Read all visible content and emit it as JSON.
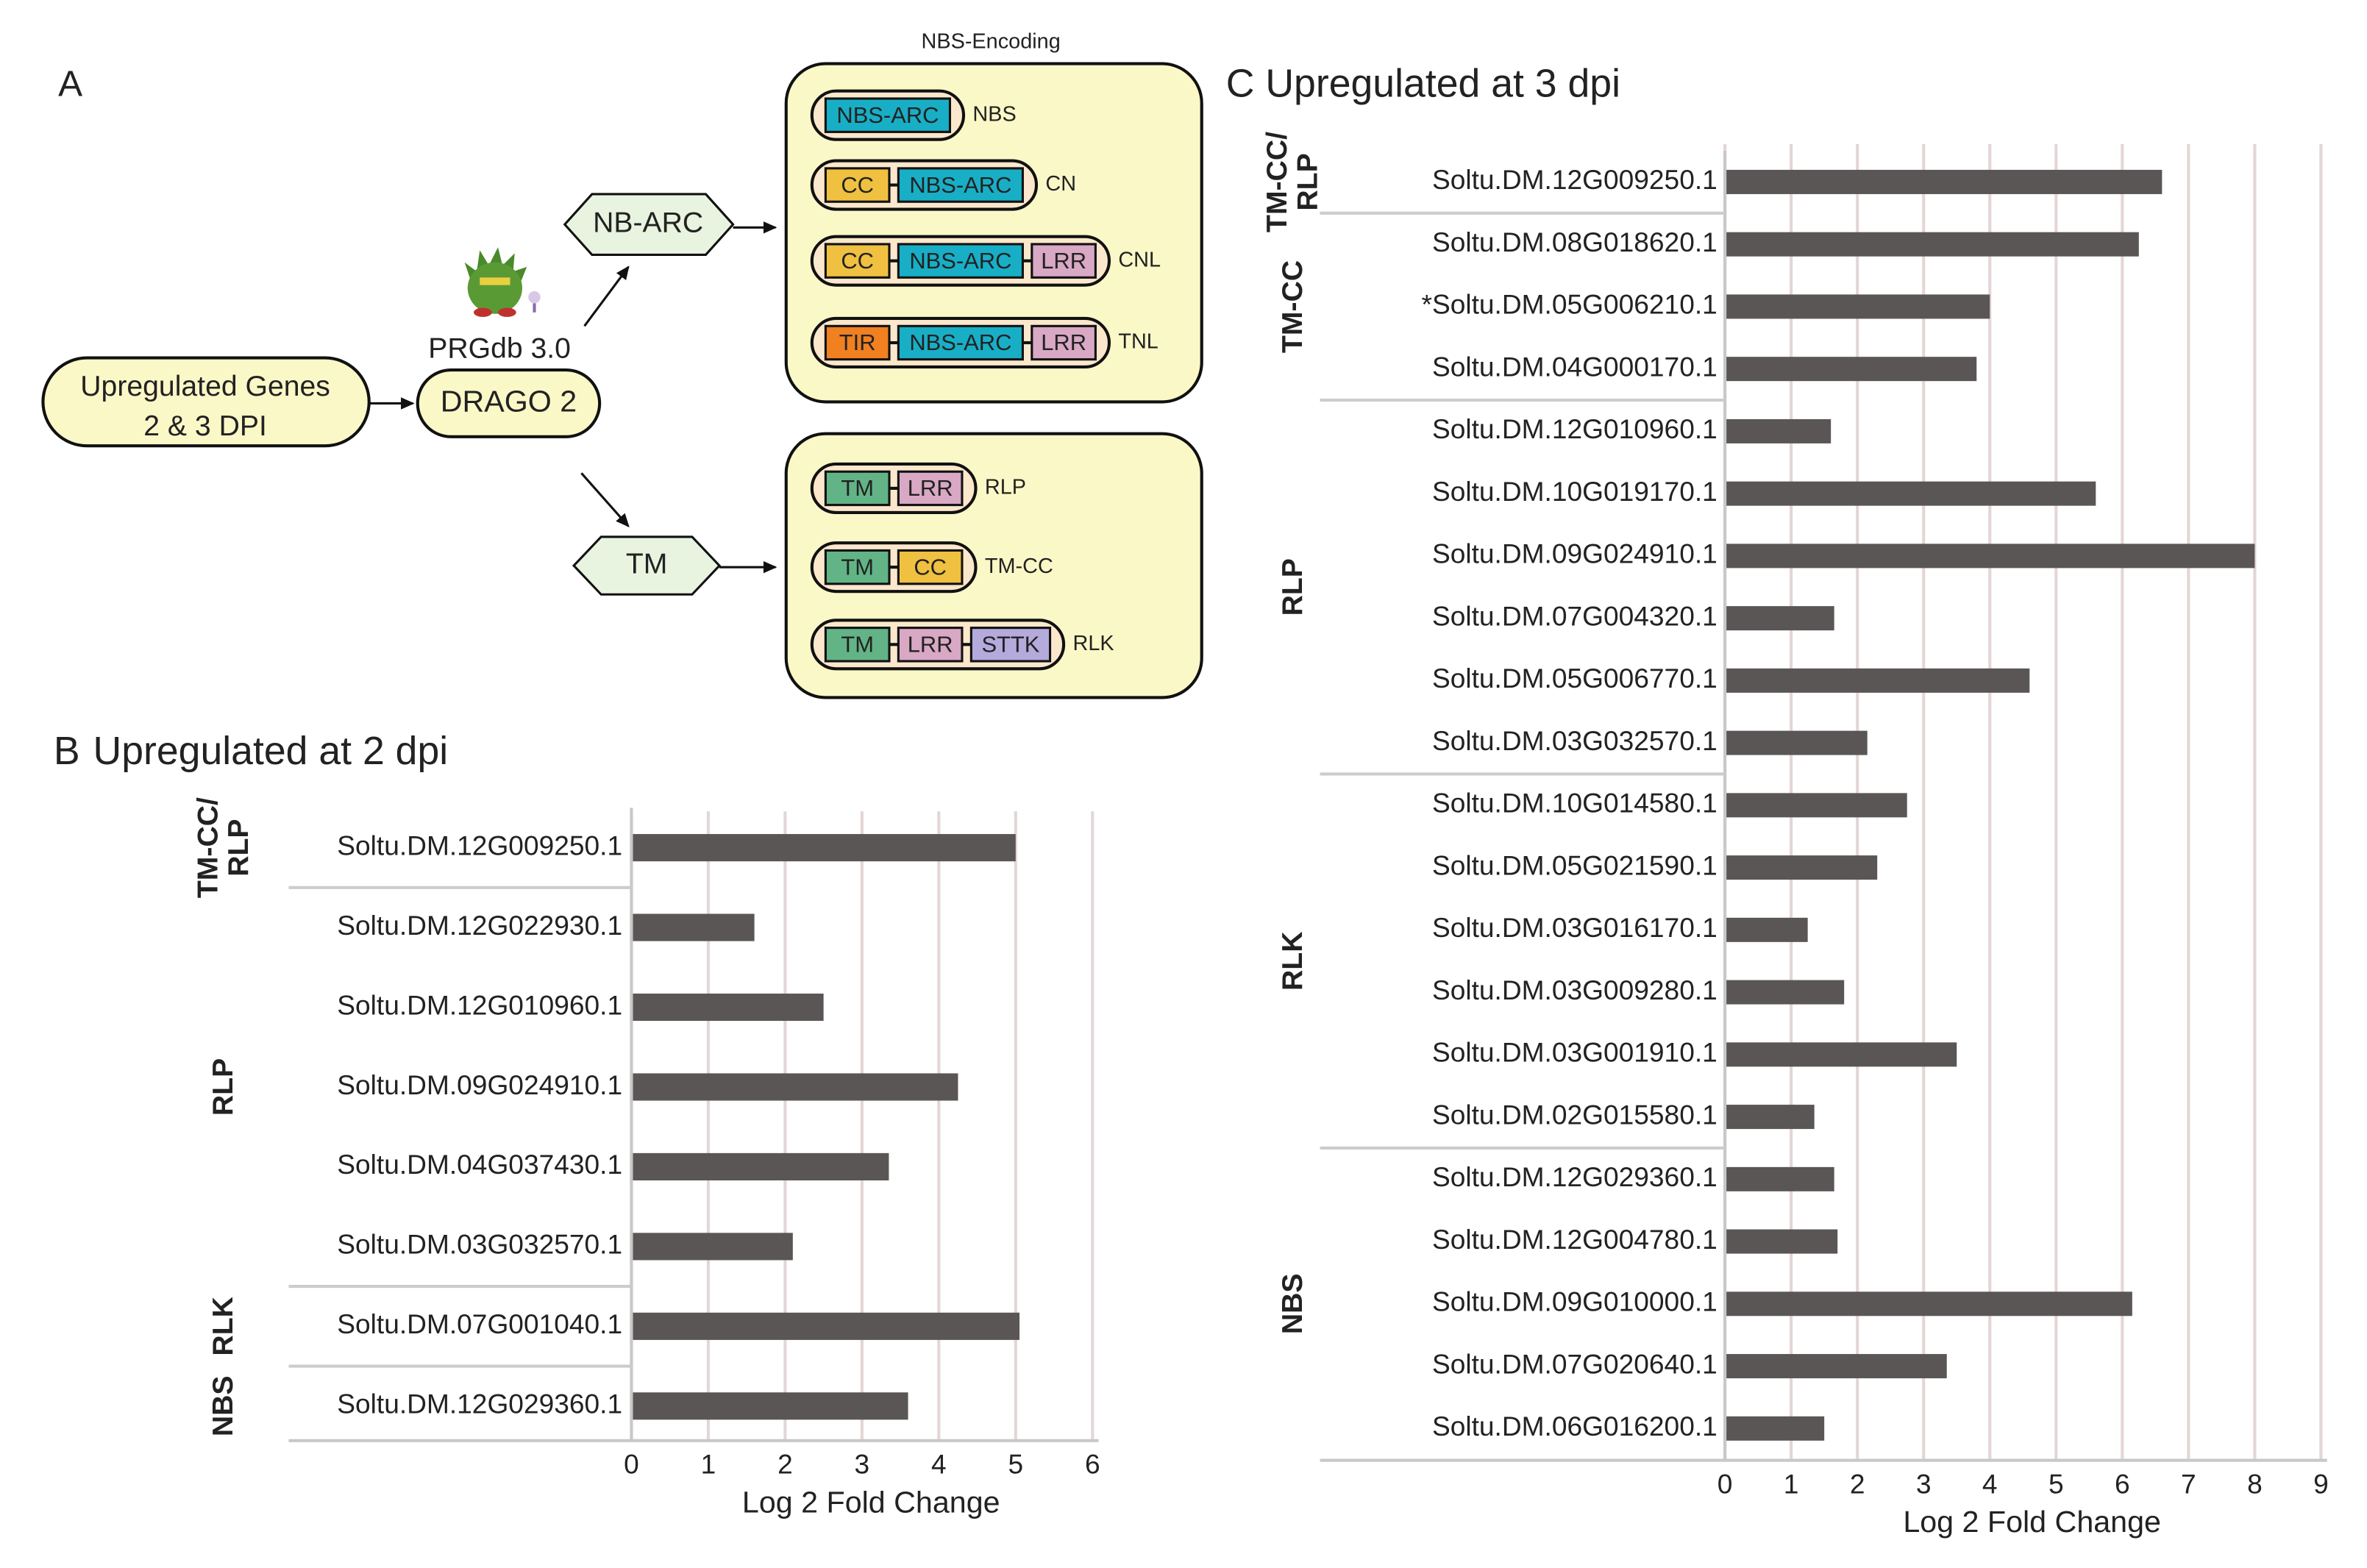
{
  "diagram": {
    "panel_label": "A",
    "title": "NBS-Encoding",
    "title_color": "#e02020",
    "input": [
      "Upregulated Genes",
      "2 & 3 DPI"
    ],
    "database": "PRGdb 3.0",
    "tool": "DRAGO 2",
    "branches": [
      {
        "label": "NB-ARC",
        "classes": [
          {
            "name": "NBS",
            "name_color": "#222222",
            "domains": [
              {
                "name": "NBS-ARC",
                "color": "#18aec6"
              }
            ]
          },
          {
            "name": "CN",
            "name_color": "#222222",
            "domains": [
              {
                "name": "CC",
                "color": "#f0c040"
              },
              {
                "name": "NBS-ARC",
                "color": "#18aec6"
              }
            ]
          },
          {
            "name": "CNL",
            "name_color": "#222222",
            "domains": [
              {
                "name": "CC",
                "color": "#f0c040"
              },
              {
                "name": "NBS-ARC",
                "color": "#18aec6"
              },
              {
                "name": "LRR",
                "color": "#d8a8c4"
              }
            ]
          },
          {
            "name": "TNL",
            "name_color": "#222222",
            "domains": [
              {
                "name": "TIR",
                "color": "#f08020"
              },
              {
                "name": "NBS-ARC",
                "color": "#18aec6"
              },
              {
                "name": "LRR",
                "color": "#d8a8c4"
              }
            ]
          }
        ]
      },
      {
        "label": "TM",
        "classes": [
          {
            "name": "RLP",
            "name_color": "#e02020",
            "domains": [
              {
                "name": "TM",
                "color": "#62b486"
              },
              {
                "name": "LRR",
                "color": "#d8a8c4"
              }
            ]
          },
          {
            "name": "TM-CC",
            "name_color": "#e02020",
            "domains": [
              {
                "name": "TM",
                "color": "#62b486"
              },
              {
                "name": "CC",
                "color": "#f0c040"
              }
            ]
          },
          {
            "name": "RLK",
            "name_color": "#e02020",
            "domains": [
              {
                "name": "TM",
                "color": "#62b486"
              },
              {
                "name": "LRR",
                "color": "#d8a8c4"
              },
              {
                "name": "STTK",
                "color": "#b4aadc"
              }
            ]
          }
        ]
      }
    ]
  },
  "chart_data": [
    {
      "type": "bar",
      "orientation": "horizontal",
      "panel_label": "B",
      "title": "Upregulated at 2 dpi",
      "x_label": "Log 2 Fold Change",
      "categories": [
        "Soltu.DM.12G009250.1",
        "Soltu.DM.12G022930.1",
        "Soltu.DM.12G010960.1",
        "Soltu.DM.09G024910.1",
        "Soltu.DM.04G037430.1",
        "Soltu.DM.03G032570.1",
        "Soltu.DM.07G001040.1",
        "Soltu.DM.12G029360.1"
      ],
      "values": [
        5.0,
        1.6,
        2.5,
        4.25,
        3.35,
        2.1,
        5.05,
        3.6
      ],
      "color": "#5a5656",
      "xlim": [
        0,
        6
      ],
      "xticks": [
        0,
        1,
        2,
        3,
        4,
        5,
        6
      ],
      "grid": true,
      "groups": [
        [
          "TM-CC/",
          "RLP"
        ],
        [
          "RLP"
        ],
        [
          "RLK"
        ],
        [
          "NBS"
        ]
      ]
    },
    {
      "type": "bar",
      "orientation": "horizontal",
      "panel_label": "C",
      "title": "Upregulated at 3 dpi",
      "x_label": "Log 2 Fold Change",
      "categories": [
        "Soltu.DM.12G009250.1",
        "Soltu.DM.08G018620.1",
        "*Soltu.DM.05G006210.1",
        "Soltu.DM.04G000170.1",
        "Soltu.DM.12G010960.1",
        "Soltu.DM.10G019170.1",
        "Soltu.DM.09G024910.1",
        "Soltu.DM.07G004320.1",
        "Soltu.DM.05G006770.1",
        "Soltu.DM.03G032570.1",
        "Soltu.DM.10G014580.1",
        "Soltu.DM.05G021590.1",
        "Soltu.DM.03G016170.1",
        "Soltu.DM.03G009280.1",
        "Soltu.DM.03G001910.1",
        "Soltu.DM.02G015580.1",
        "Soltu.DM.12G029360.1",
        "Soltu.DM.12G004780.1",
        "Soltu.DM.09G010000.1",
        "Soltu.DM.07G020640.1",
        "Soltu.DM.06G016200.1"
      ],
      "values": [
        6.6,
        6.25,
        4.0,
        3.8,
        1.6,
        5.6,
        8.0,
        1.65,
        4.6,
        2.15,
        2.75,
        2.3,
        1.25,
        1.8,
        3.5,
        1.35,
        1.65,
        1.7,
        6.15,
        3.35,
        1.5
      ],
      "color": "#5a5656",
      "xlim": [
        0,
        9
      ],
      "xticks": [
        0,
        1,
        2,
        3,
        4,
        5,
        6,
        7,
        8,
        9
      ],
      "grid": true,
      "groups": [
        [
          "TM-CC/",
          "RLP"
        ],
        [
          "TM-CC"
        ],
        [
          "RLP"
        ],
        [
          "RLK"
        ],
        [
          "NBS"
        ]
      ]
    }
  ]
}
